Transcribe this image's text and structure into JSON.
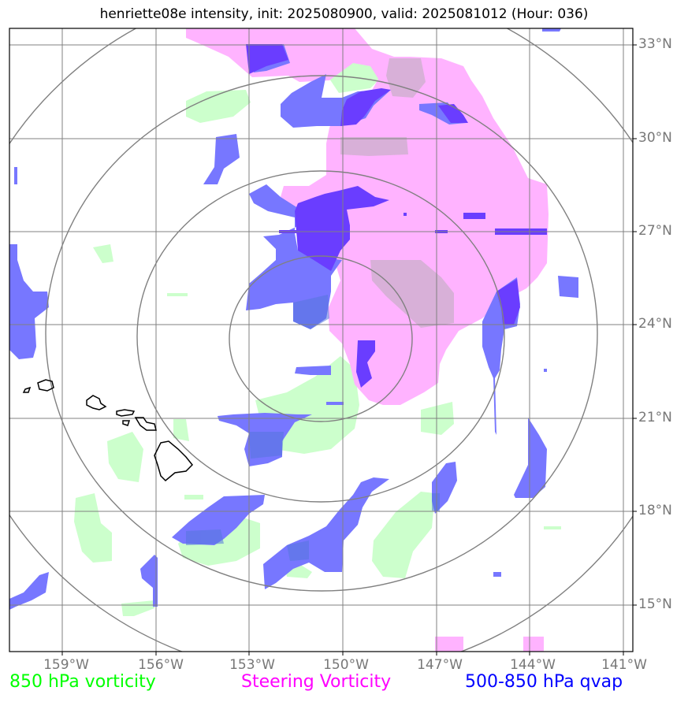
{
  "title": "henriette08e intensity, init: 2025080900, valid: 2025081012 (Hour: 036)",
  "lat_labels": [
    "33°N",
    "30°N",
    "27°N",
    "24°N",
    "21°N",
    "18°N",
    "15°N"
  ],
  "lon_labels": [
    "159°W",
    "156°W",
    "153°W",
    "150°W",
    "147°W",
    "144°W",
    "141°W"
  ],
  "legend": [
    {
      "label": "850 hPa vorticity",
      "color": "#00ff00"
    },
    {
      "label": "Steering Vorticity",
      "color": "#ff00ff"
    },
    {
      "label": "500-850 hPa qvap",
      "color": "#0000ff"
    }
  ],
  "colors": {
    "vorticity_850": "#ccffcc",
    "steering_vorticity": "#ffb3ff",
    "qvap": "#6666ff",
    "qvap_strong": "#6a3dff",
    "overlap": "#d8b0d8",
    "gridlines": "#808080",
    "range_rings": "#808080",
    "coastline": "#000000"
  },
  "map": {
    "lat_range": [
      "13.5°N",
      "33.5°N"
    ],
    "lon_range": [
      "160.5°W",
      "140.5°W"
    ],
    "range_rings": 4,
    "features": [
      "Hawaiian Islands"
    ]
  }
}
